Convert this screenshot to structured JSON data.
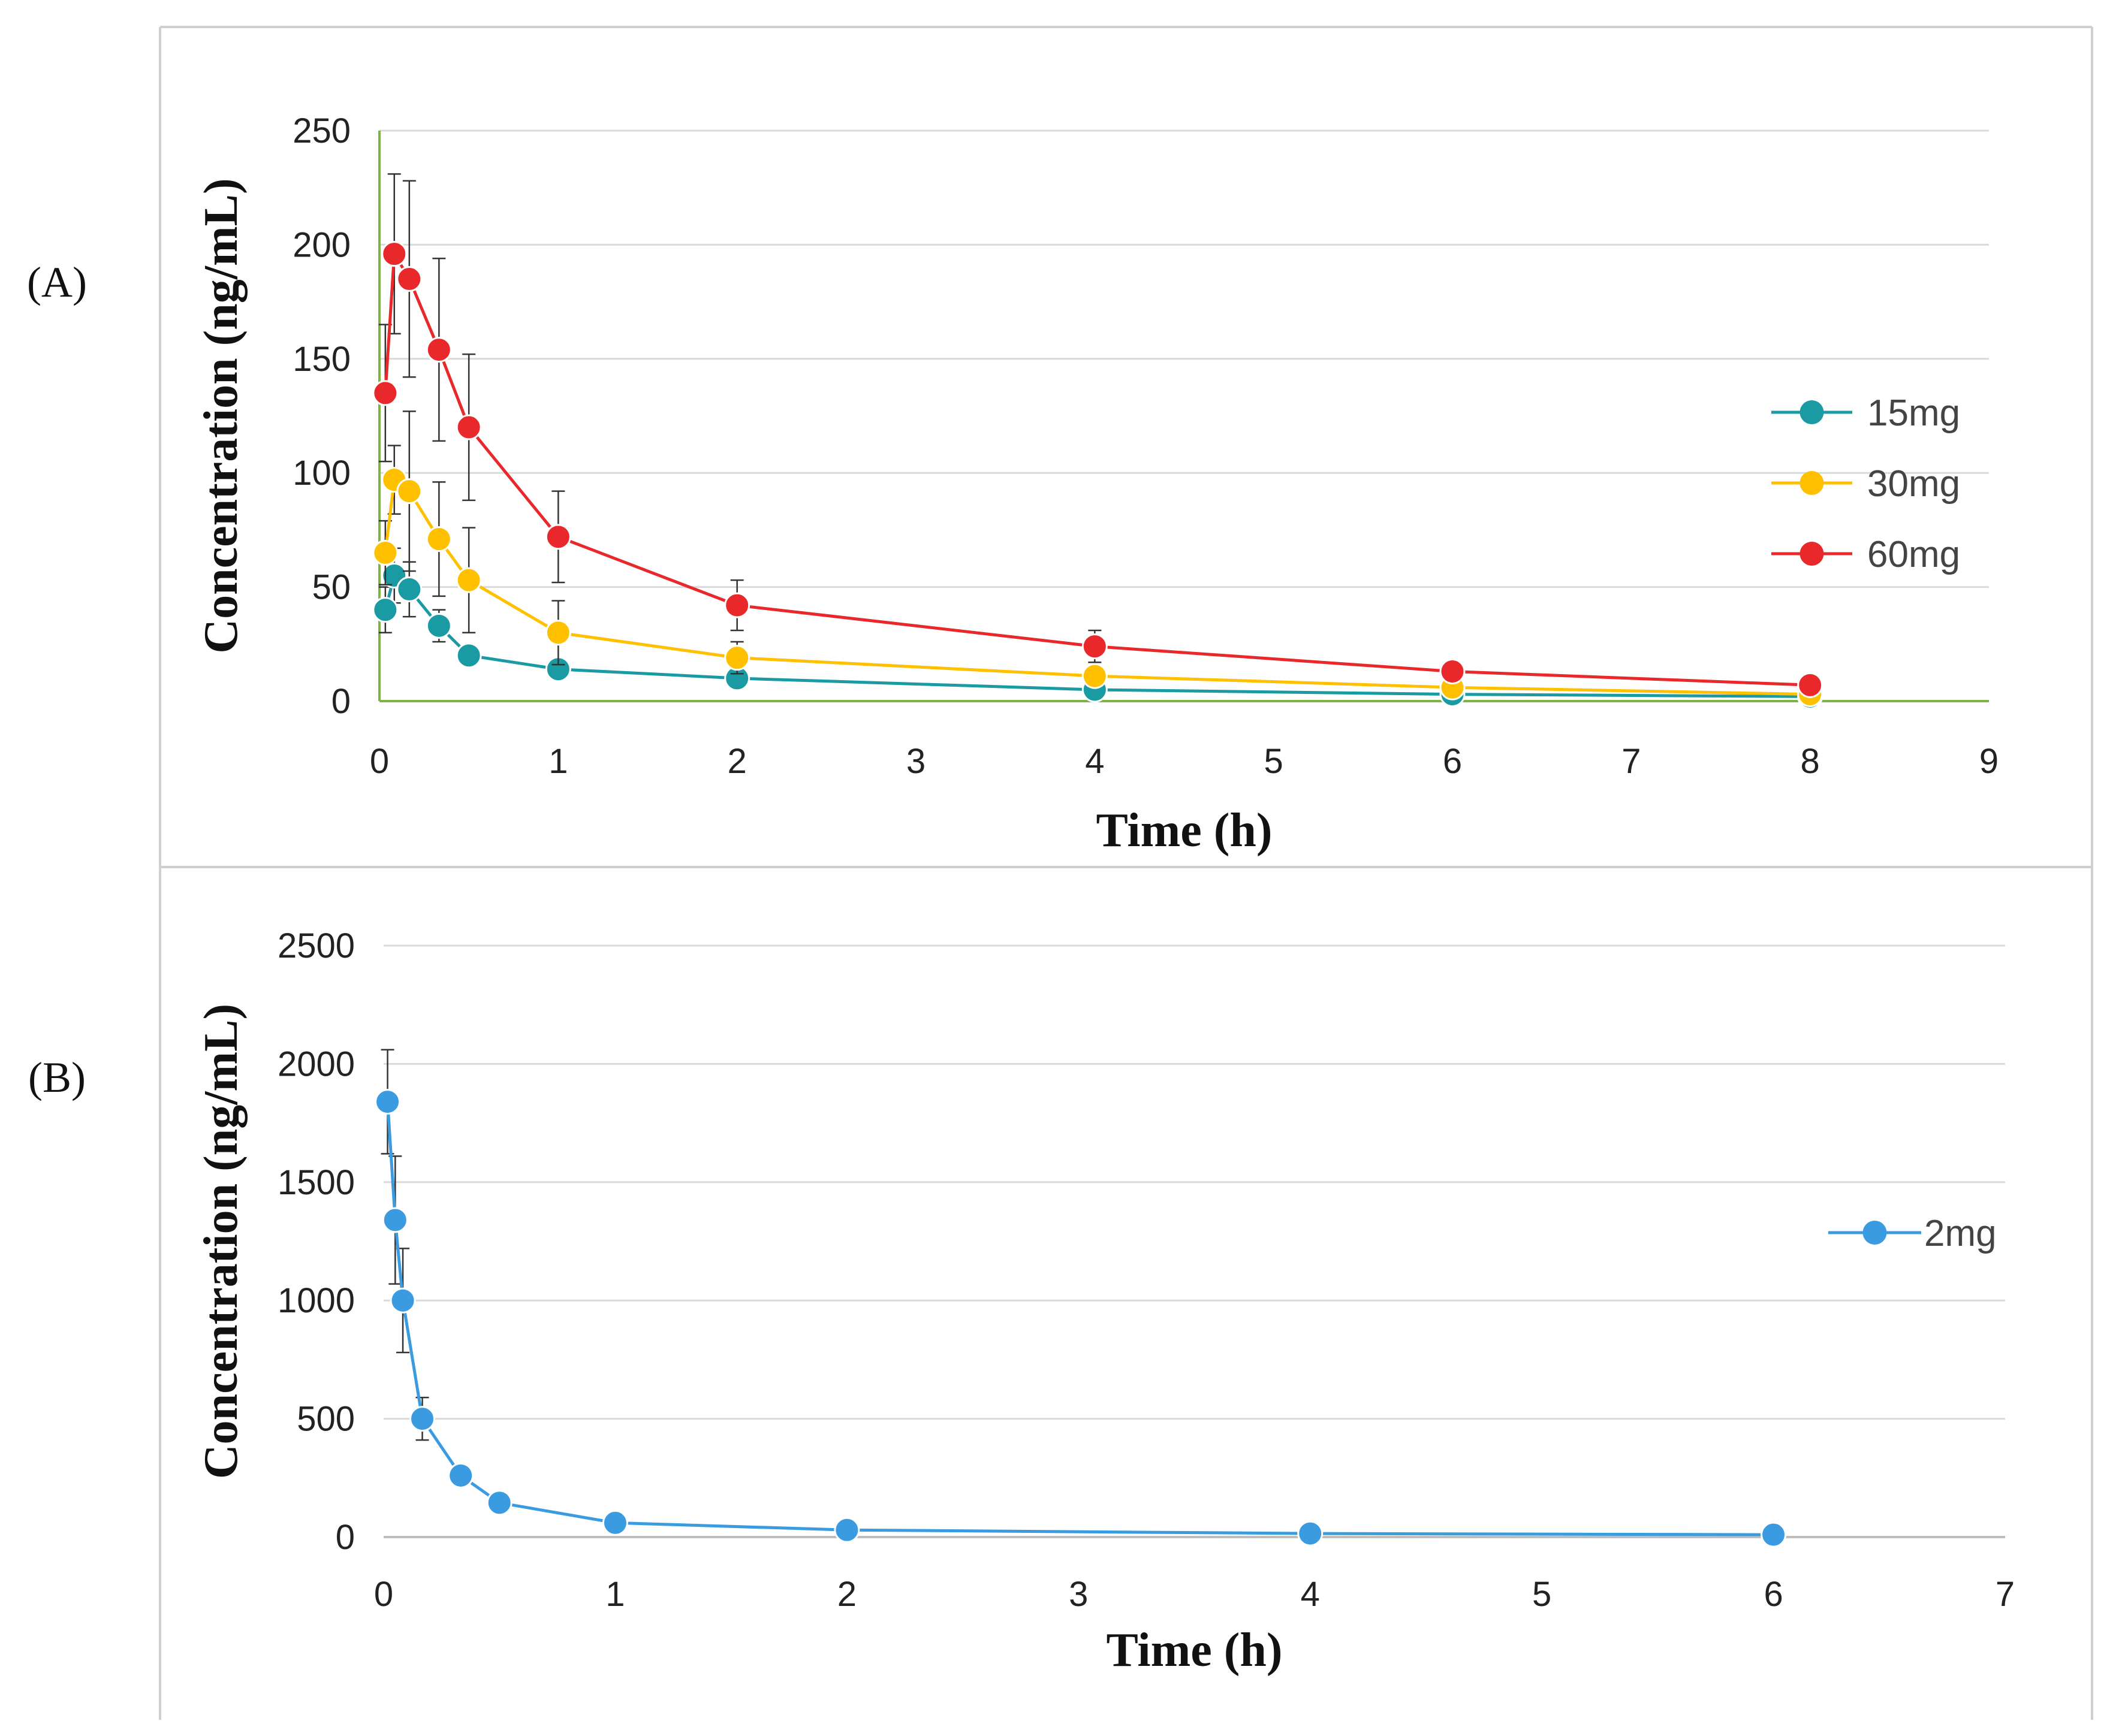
{
  "chart_data": [
    {
      "type": "line",
      "panel_label": "(A)",
      "xlabel": "Time (h)",
      "ylabel": "Concentration (ng/mL)",
      "xlim": [
        0,
        9
      ],
      "ylim": [
        0,
        250
      ],
      "xticks": [
        0,
        1,
        2,
        3,
        4,
        5,
        6,
        7,
        8,
        9
      ],
      "yticks": [
        0,
        50,
        100,
        150,
        200,
        250
      ],
      "grid": true,
      "legend_position": "right",
      "series": [
        {
          "name": "15mg",
          "color": "#1a9ba3",
          "x": [
            0.033,
            0.083,
            0.167,
            0.333,
            0.5,
            1,
            2,
            4,
            6,
            8
          ],
          "y": [
            40,
            55,
            49,
            33,
            20,
            14,
            10,
            5,
            3,
            2
          ],
          "err": [
            10,
            12,
            12,
            7,
            3,
            2,
            2,
            1,
            1,
            0.5
          ]
        },
        {
          "name": "30mg",
          "color": "#ffc000",
          "x": [
            0.033,
            0.083,
            0.167,
            0.333,
            0.5,
            1,
            2,
            4,
            6,
            8
          ],
          "y": [
            65,
            97,
            92,
            71,
            53,
            30,
            19,
            11,
            6,
            3
          ],
          "err": [
            14,
            15,
            35,
            25,
            23,
            14,
            7,
            3,
            2,
            1
          ]
        },
        {
          "name": "60mg",
          "color": "#e8282b",
          "x": [
            0.033,
            0.083,
            0.167,
            0.333,
            0.5,
            1,
            2,
            4,
            6,
            8
          ],
          "y": [
            135,
            196,
            185,
            154,
            120,
            72,
            42,
            24,
            13,
            7
          ],
          "err": [
            30,
            35,
            43,
            40,
            32,
            20,
            11,
            7,
            3,
            2
          ]
        }
      ]
    },
    {
      "type": "line",
      "panel_label": "(B)",
      "xlabel": "Time (h)",
      "ylabel": "Concentration (ng/mL)",
      "xlim": [
        0,
        7
      ],
      "ylim": [
        0,
        2500
      ],
      "xticks": [
        0,
        1,
        2,
        3,
        4,
        5,
        6,
        7
      ],
      "yticks": [
        0,
        500,
        1000,
        1500,
        2000,
        2500
      ],
      "grid": true,
      "legend_position": "right",
      "series": [
        {
          "name": "2mg",
          "color": "#3a9be0",
          "x": [
            0.017,
            0.05,
            0.083,
            0.167,
            0.333,
            0.5,
            1,
            2,
            4,
            6
          ],
          "y": [
            1840,
            1340,
            1000,
            500,
            260,
            145,
            60,
            30,
            15,
            10
          ],
          "err": [
            220,
            270,
            220,
            90,
            30,
            15,
            8,
            5,
            3,
            2
          ]
        }
      ]
    }
  ]
}
